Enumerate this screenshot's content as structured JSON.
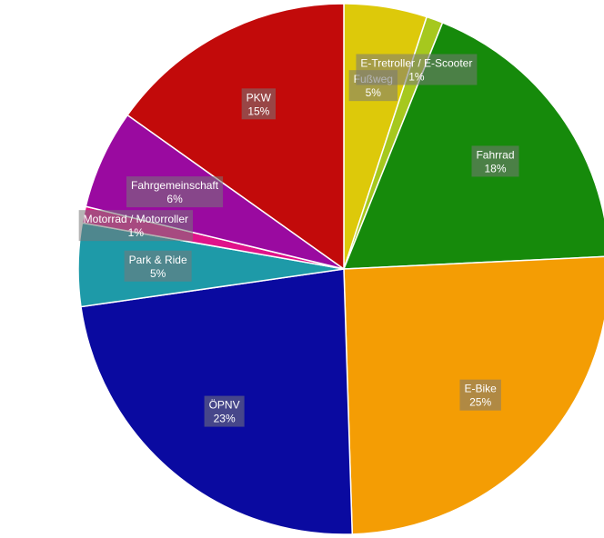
{
  "chart_data": {
    "type": "pie",
    "slices": [
      {
        "name": "Fußweg",
        "value": 5,
        "label": "5%",
        "color": "#ddc90a"
      },
      {
        "name": "E-Tretroller / E-Scooter",
        "value": 1,
        "label": "1%",
        "color": "#a6c81e"
      },
      {
        "name": "Fahrrad",
        "value": 18,
        "label": "18%",
        "color": "#168a0b"
      },
      {
        "name": "E-Bike",
        "value": 25,
        "label": "25%",
        "color": "#f49d04"
      },
      {
        "name": "ÖPNV",
        "value": 23,
        "label": "23%",
        "color": "#0a0aa0"
      },
      {
        "name": "Park & Ride",
        "value": 5,
        "label": "5%",
        "color": "#1e9aa8"
      },
      {
        "name": "Motorrad / Motorroller",
        "value": 1,
        "label": "1%",
        "color": "#e0138a"
      },
      {
        "name": "Fahrgemeinschaft",
        "value": 6,
        "label": "6%",
        "color": "#9a0aa0"
      },
      {
        "name": "PKW",
        "value": 15,
        "label": "15%",
        "color": "#c20a0a"
      }
    ]
  }
}
